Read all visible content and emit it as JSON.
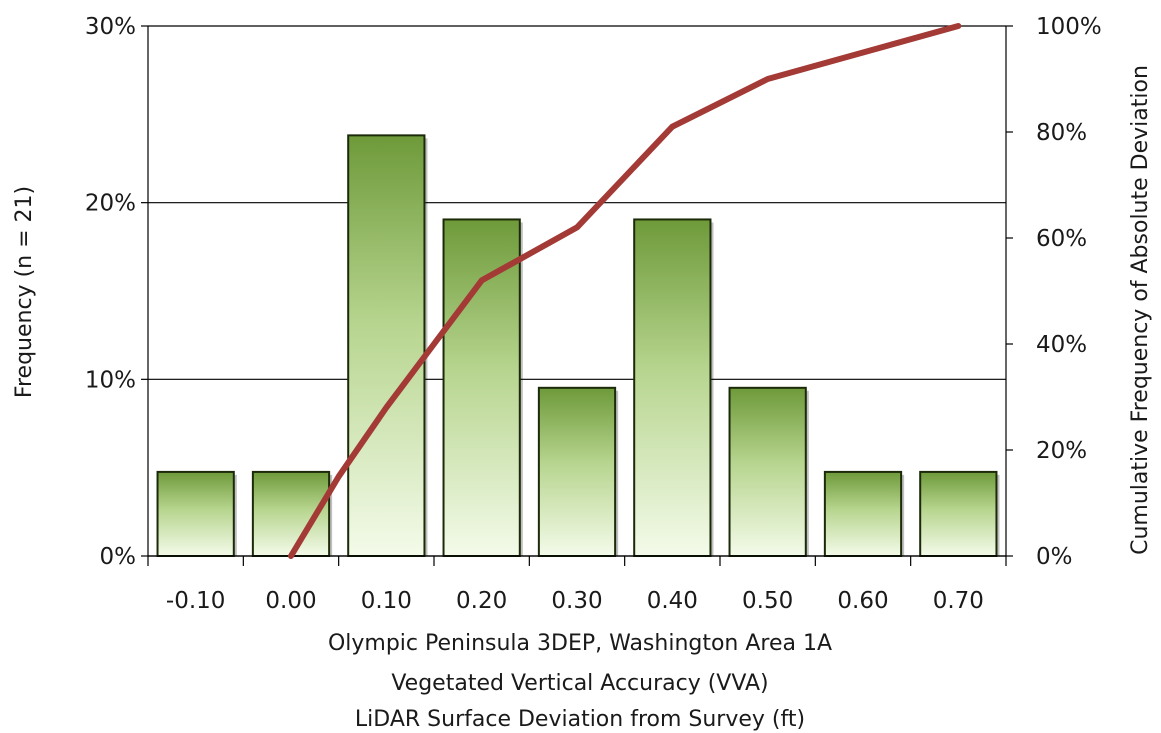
{
  "chart_data": {
    "type": "bar",
    "categories": [
      "-0.10",
      "0.00",
      "0.10",
      "0.20",
      "0.30",
      "0.40",
      "0.50",
      "0.60",
      "0.70"
    ],
    "series": [
      {
        "axis": "left",
        "type": "bar",
        "values": [
          4.76,
          4.76,
          23.81,
          19.05,
          9.52,
          19.05,
          9.52,
          4.76,
          4.76
        ]
      },
      {
        "axis": "right",
        "type": "line",
        "x": [
          0.0,
          0.05,
          0.1,
          0.15,
          0.2,
          0.3,
          0.4,
          0.5,
          0.6,
          0.7
        ],
        "values": [
          0,
          15,
          28,
          40,
          52,
          62,
          81,
          90,
          95,
          100
        ]
      }
    ],
    "xlabel_lines": [
      "Olympic Peninsula 3DEP, Washington Area 1A",
      "Vegetated Vertical Accuracy (VVA)",
      "LiDAR Surface Deviation from Survey (ft)"
    ],
    "ylabel": "Frequency (n = 21)",
    "y2label": "Cumulative Frequency of Absolute Deviation",
    "ylim": [
      0,
      30
    ],
    "y2lim": [
      0,
      100
    ],
    "yticks": [
      "0%",
      "10%",
      "20%",
      "30%"
    ],
    "y2ticks": [
      "0%",
      "20%",
      "40%",
      "60%",
      "80%",
      "100%"
    ],
    "grid": true,
    "colors": {
      "bar_top": "#6e9a3a",
      "bar_bottom": "#f4fbea",
      "bar_edge": "#1c2a0a",
      "line": "#a33a36"
    }
  }
}
